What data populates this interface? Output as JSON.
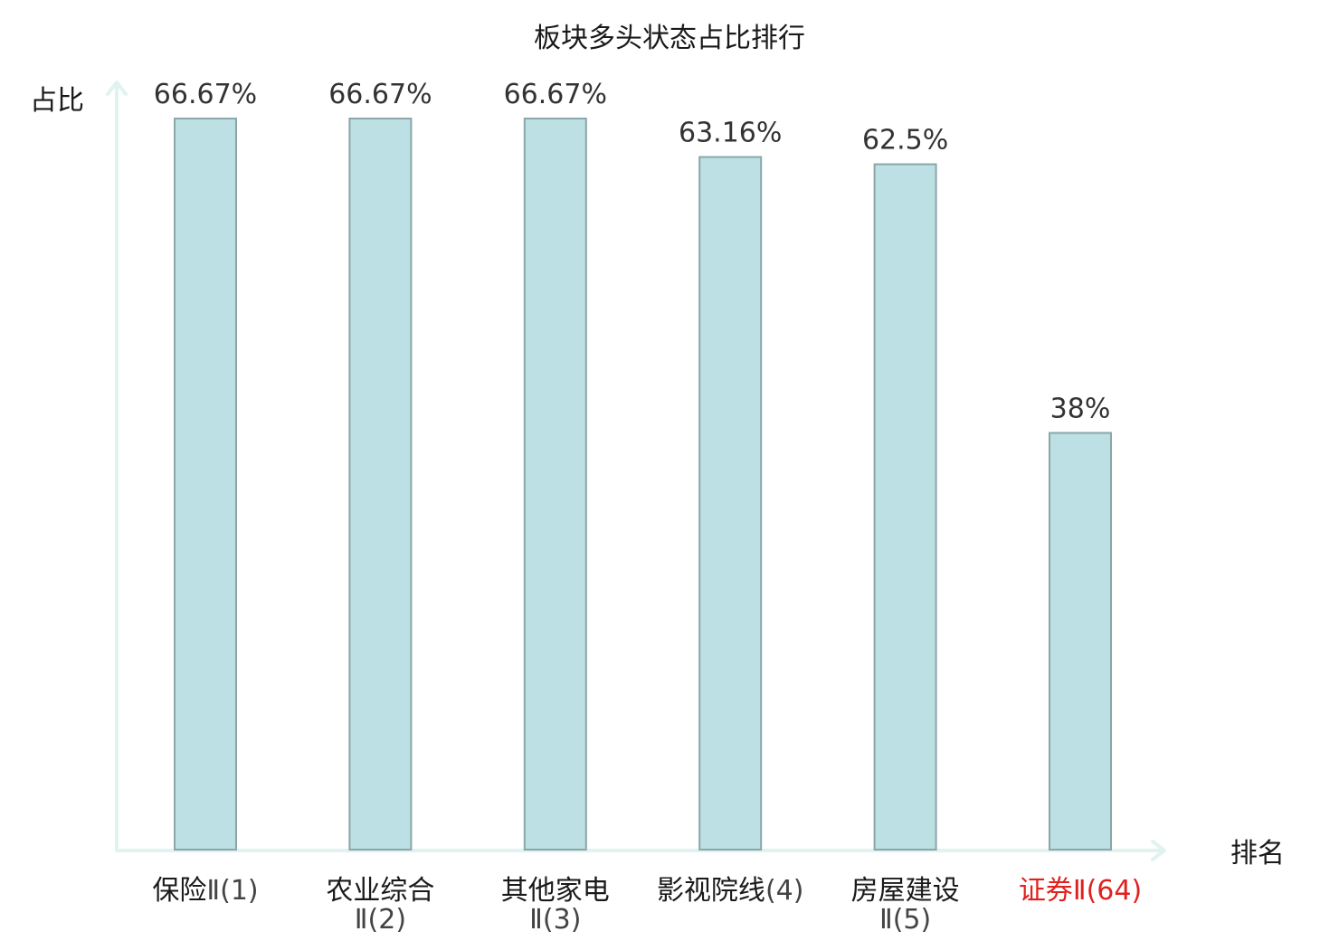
{
  "chart_data": {
    "type": "bar",
    "title": "板块多头状态占比排行",
    "ylabel": "占比",
    "xlabel": "排名",
    "ylim": [
      0,
      70
    ],
    "grid": false,
    "categories": [
      {
        "lines": [
          {
            "name": "保险",
            "rank": "Ⅱ(1)"
          }
        ],
        "highlight": false
      },
      {
        "lines": [
          {
            "name": "农业综合",
            "rank": ""
          },
          {
            "name": "",
            "rank": "Ⅱ(2)"
          }
        ],
        "highlight": false
      },
      {
        "lines": [
          {
            "name": "其他家电",
            "rank": ""
          },
          {
            "name": "",
            "rank": "Ⅱ(3)"
          }
        ],
        "highlight": false
      },
      {
        "lines": [
          {
            "name": "影视院线",
            "rank": "(4)"
          }
        ],
        "highlight": false
      },
      {
        "lines": [
          {
            "name": "房屋建设",
            "rank": ""
          },
          {
            "name": "",
            "rank": "Ⅱ(5)"
          }
        ],
        "highlight": false
      },
      {
        "lines": [
          {
            "name": "证券",
            "rank": "Ⅱ(64)"
          }
        ],
        "highlight": true
      }
    ],
    "values": [
      66.67,
      66.67,
      66.67,
      63.16,
      62.5,
      38
    ],
    "value_labels": [
      "66.67%",
      "66.67%",
      "66.67%",
      "63.16%",
      "62.5%",
      "38%"
    ],
    "colors": {
      "bar_fill": "#bce0e3",
      "bar_stroke": "#8aa6a8",
      "axis": "#e0f3f0",
      "label": "#1a1a1a",
      "rank": "#444444",
      "highlight": "#e0221f"
    }
  }
}
